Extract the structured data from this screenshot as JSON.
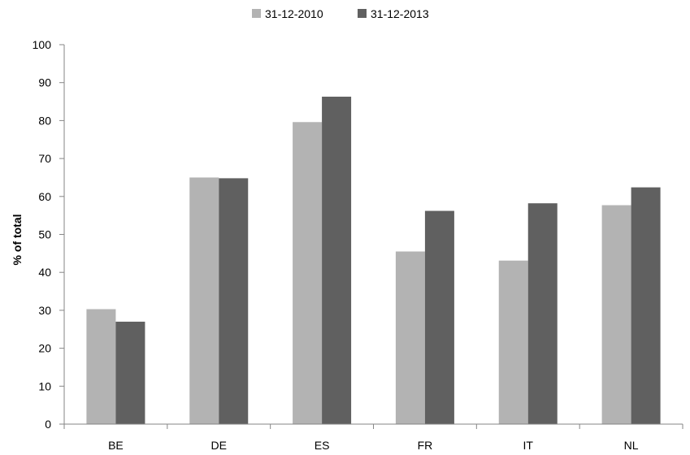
{
  "chart_data": {
    "type": "bar",
    "title": "",
    "xlabel": "",
    "ylabel": "% of total",
    "ylim": [
      0,
      100
    ],
    "yticks": [
      0,
      10,
      20,
      30,
      40,
      50,
      60,
      70,
      80,
      90,
      100
    ],
    "grid": false,
    "legend_position": "top-center",
    "categories": [
      "BE",
      "DE",
      "ES",
      "FR",
      "IT",
      "NL"
    ],
    "series": [
      {
        "name": "31-12-2010",
        "color": "#B3B3B3",
        "values": [
          30.3,
          65.0,
          79.6,
          45.5,
          43.1,
          57.7
        ]
      },
      {
        "name": "31-12-2013",
        "color": "#606060",
        "values": [
          27.0,
          64.8,
          86.3,
          56.2,
          58.2,
          62.4
        ]
      }
    ]
  }
}
